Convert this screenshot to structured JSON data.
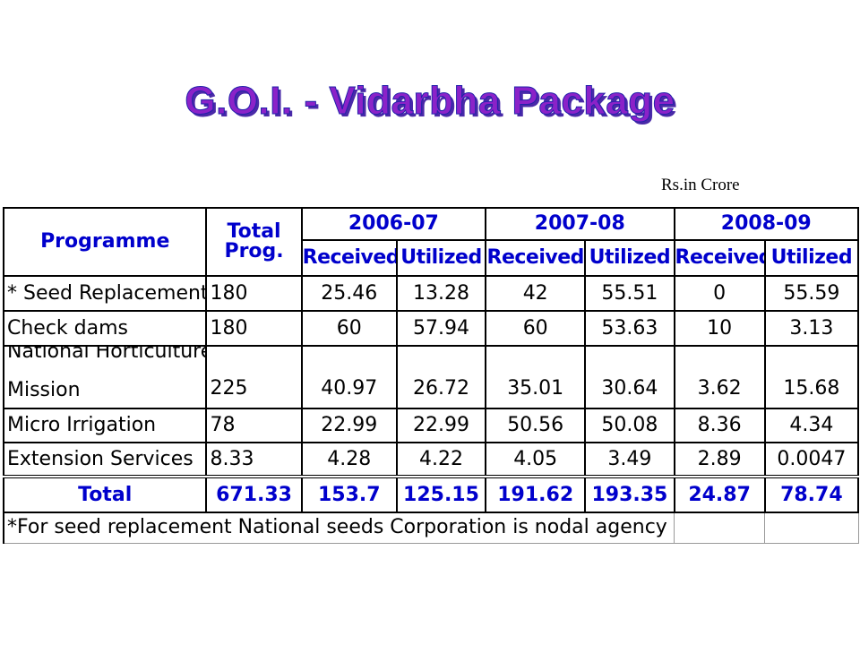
{
  "title": "G.O.I. - Vidarbha Package",
  "unit_label": "Rs.in Crore",
  "table": {
    "header_programme": "Programme",
    "header_total_line1": "Total",
    "header_total_line2": "Prog.",
    "years": [
      "2006-07",
      "2007-08",
      "2008-09"
    ],
    "sub_received": "Received",
    "sub_utilized": "Utilized",
    "rows": [
      {
        "programme": "* Seed Replacement",
        "total": "180",
        "r1": "25.46",
        "u1": "13.28",
        "r2": "42",
        "u2": "55.51",
        "r3": "0",
        "u3": "55.59"
      },
      {
        "programme": "Check dams",
        "total": "180",
        "r1": "60",
        "u1": "57.94",
        "r2": "60",
        "u2": "53.63",
        "r3": "10",
        "u3": "3.13"
      },
      {
        "programme_line1": "National Horticulture",
        "programme_line2": "Mission",
        "total": "225",
        "r1": "40.97",
        "u1": "26.72",
        "r2": "35.01",
        "u2": "30.64",
        "r3": "3.62",
        "u3": "15.68"
      },
      {
        "programme": "Micro Irrigation",
        "total": "78",
        "r1": "22.99",
        "u1": "22.99",
        "r2": "50.56",
        "u2": "50.08",
        "r3": "8.36",
        "u3": "4.34"
      },
      {
        "programme": "Extension Services",
        "total": "8.33",
        "r1": "4.28",
        "u1": "4.22",
        "r2": "4.05",
        "u2": "3.49",
        "r3": "2.89",
        "u3": "0.0047"
      }
    ],
    "total_row": {
      "label": "Total",
      "total": "671.33",
      "r1": "153.7",
      "u1": "125.15",
      "r2": "191.62",
      "u2": "193.35",
      "r3": "24.87",
      "u3": "78.74"
    },
    "footnote": "*For seed replacement National seeds Corporation is nodal agency"
  }
}
